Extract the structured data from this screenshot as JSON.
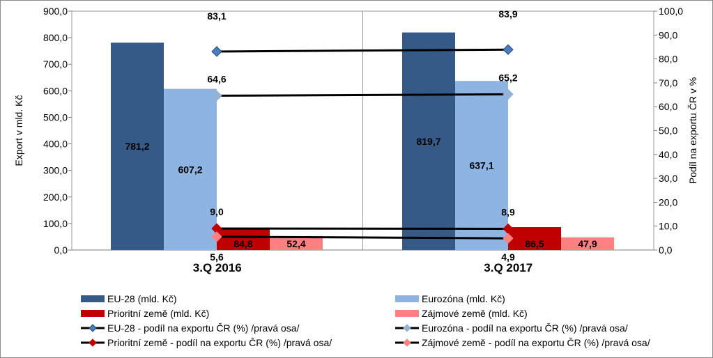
{
  "chart_data": {
    "type": "bar",
    "categories": [
      "3.Q 2016",
      "3.Q 2017"
    ],
    "y_left": {
      "label": "Export v mld. Kč",
      "ylim": [
        0,
        900
      ],
      "ticks": [
        "0,0",
        "100,0",
        "200,0",
        "300,0",
        "400,0",
        "500,0",
        "600,0",
        "700,0",
        "800,0",
        "900,0"
      ]
    },
    "y_right": {
      "label": "Podíl na exportu ČR v %",
      "ylim": [
        0,
        100
      ],
      "ticks": [
        "0,0",
        "10,0",
        "20,0",
        "30,0",
        "40,0",
        "50,0",
        "60,0",
        "70,0",
        "80,0",
        "90,0",
        "100,0"
      ]
    },
    "bar_series": [
      {
        "name": "EU-28 (mld. Kč)",
        "color": "#365A87",
        "values": [
          781.2,
          819.7
        ],
        "labels": [
          "781,2",
          "819,7"
        ]
      },
      {
        "name": "Eurozóna (mld. Kč)",
        "color": "#8EB4E3",
        "values": [
          607.2,
          637.1
        ],
        "labels": [
          "607,2",
          "637,1"
        ]
      },
      {
        "name": "Prioritní země (mld. Kč)",
        "color": "#C00000",
        "values": [
          84.8,
          86.5
        ],
        "labels": [
          "84,8",
          "86,5"
        ]
      },
      {
        "name": "Zájmové země (mld. Kč)",
        "color": "#FF8080",
        "values": [
          52.4,
          47.9
        ],
        "labels": [
          "52,4",
          "47,9"
        ]
      }
    ],
    "line_series": [
      {
        "name": "EU-28 - podíl na exportu ČR (%) /pravá osa/",
        "axis": "right",
        "marker_color": "#4A7EBB",
        "values": [
          83.1,
          83.9
        ],
        "labels": [
          "83,1",
          "83,9"
        ]
      },
      {
        "name": "Eurozóna - podíl na exportu ČR (%) /pravá osa/",
        "axis": "right",
        "marker_color": "#95B3D7",
        "values": [
          64.6,
          65.2
        ],
        "labels": [
          "64,6",
          "65,2"
        ]
      },
      {
        "name": "Prioritní země - podíl na exportu ČR (%) /pravá osa/",
        "axis": "right",
        "marker_color": "#C00000",
        "values": [
          9.0,
          8.9
        ],
        "labels": [
          "9,0",
          "8,9"
        ]
      },
      {
        "name": "Zájmové země - podíl na exportu ČR (%) /pravá osa/",
        "axis": "right",
        "marker_color": "#FF8080",
        "values": [
          5.6,
          4.9
        ],
        "labels": [
          "5,6",
          "4,9"
        ]
      }
    ],
    "grid": false,
    "legend_position": "bottom"
  }
}
